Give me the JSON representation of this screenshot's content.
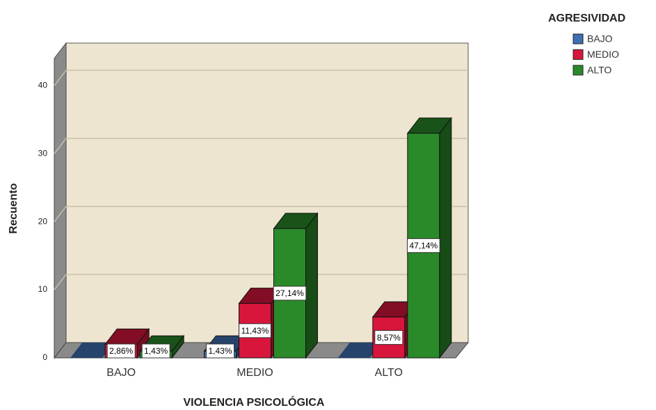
{
  "chart_data": {
    "type": "bar3d",
    "x_label": "VIOLENCIA PSICOLÓGICA",
    "y_label": "Recuento",
    "legend_title": "AGRESIVIDAD",
    "legend_position": "top-right",
    "categories": [
      "BAJO",
      "MEDIO",
      "ALTO"
    ],
    "series": [
      {
        "name": "BAJO",
        "color": "#3e6fb3",
        "values": [
          0,
          1,
          0
        ],
        "data_labels": [
          null,
          "1,43%",
          null
        ]
      },
      {
        "name": "MEDIO",
        "color": "#d8163c",
        "values": [
          2,
          8,
          6
        ],
        "data_labels": [
          "2,86%",
          "11,43%",
          "8,57%"
        ]
      },
      {
        "name": "ALTO",
        "color": "#2a8a2a",
        "values": [
          1,
          19,
          33
        ],
        "data_labels": [
          "1,43%",
          "27,14%",
          "47,14%"
        ]
      }
    ],
    "ylim": [
      0,
      44
    ],
    "yticks": [
      0,
      10,
      20,
      30,
      40
    ],
    "grid": true
  }
}
